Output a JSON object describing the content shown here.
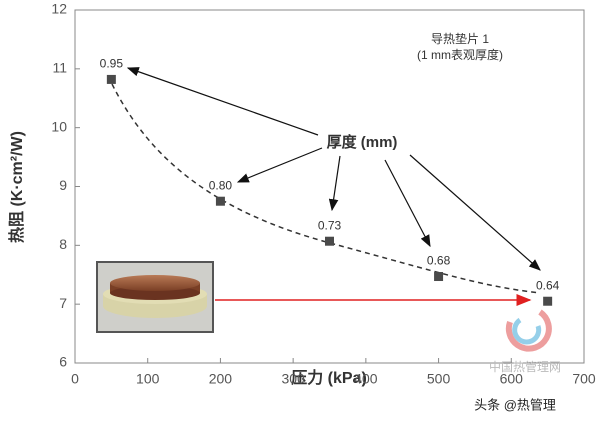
{
  "chart_data": {
    "type": "scatter",
    "x": [
      50,
      200,
      350,
      500,
      650
    ],
    "values": [
      10.82,
      8.75,
      8.07,
      7.47,
      7.05
    ],
    "point_labels": [
      "0.95",
      "0.80",
      "0.73",
      "0.68",
      "0.64"
    ],
    "color": "#4a4a4a",
    "xlabel": "压力 (kPa)",
    "ylabel": "热阻 (K·cm²/W)",
    "xlim": [
      0,
      700
    ],
    "xticks": [
      0,
      100,
      200,
      300,
      400,
      500,
      600,
      700
    ],
    "ylim": [
      6,
      12
    ],
    "yticks": [
      6,
      7,
      8,
      9,
      10,
      11,
      12
    ],
    "annotations": [
      "导热垫片 1",
      "(1 mm表观厚度)",
      "厚度 (mm)"
    ],
    "watermarks": [
      "中国热管理网",
      "头条 @热管理"
    ]
  }
}
